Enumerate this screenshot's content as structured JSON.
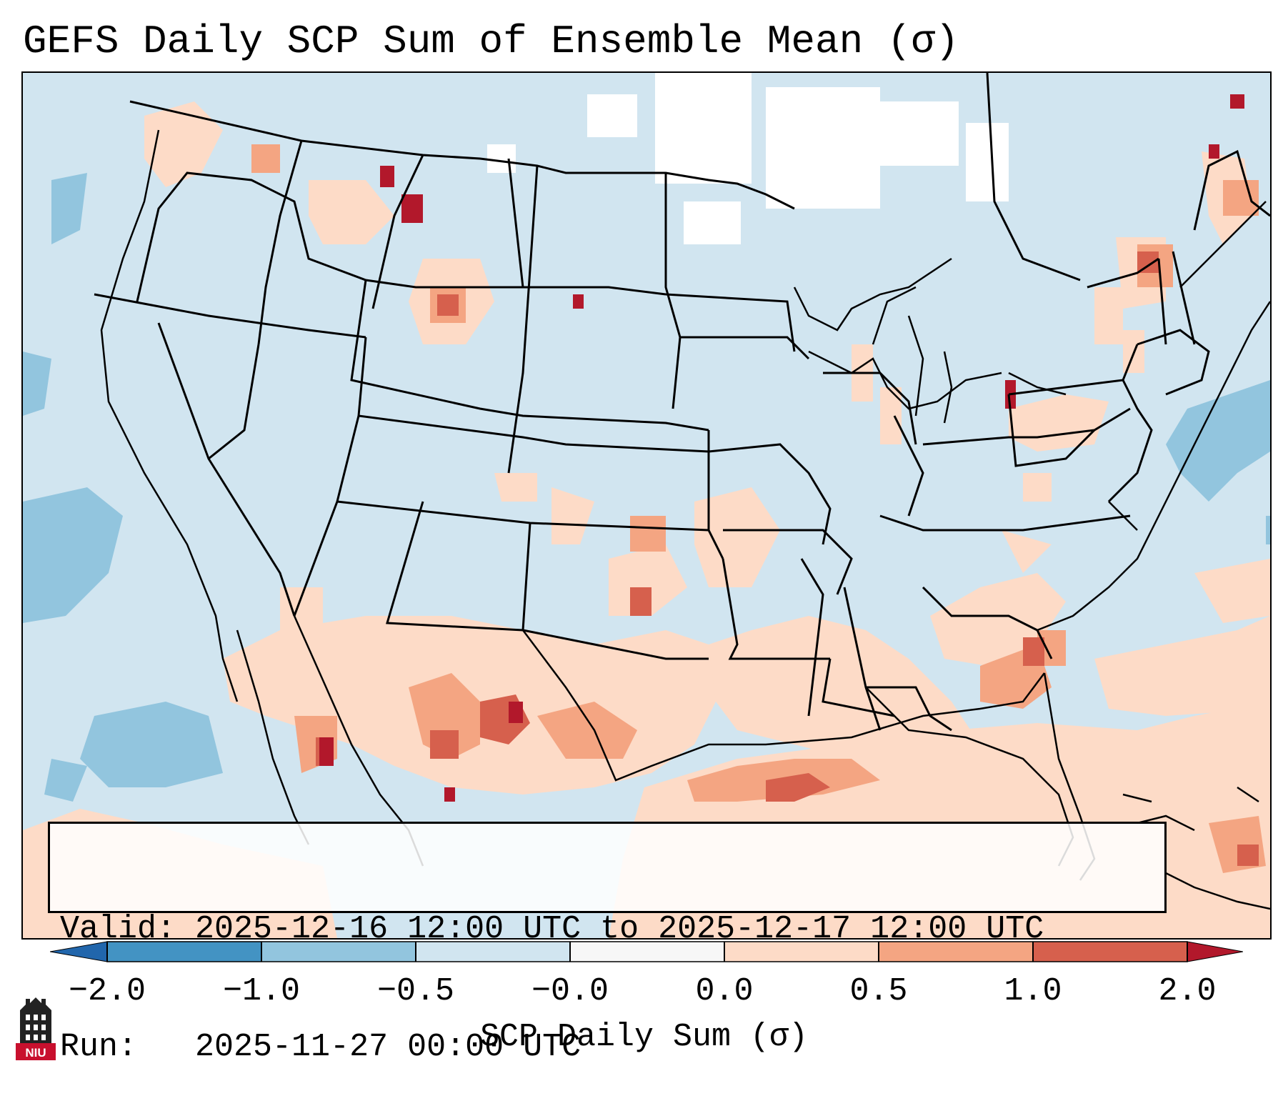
{
  "title": "GEFS Daily SCP Sum of Ensemble Mean (σ)",
  "info_box": {
    "valid_line": "Valid: 2025-12-16 12:00 UTC to 2025-12-17 12:00 UTC",
    "run_line": "Run:   2025-11-27 00:00 UTC"
  },
  "colorbar": {
    "label": "SCP Daily Sum (σ)",
    "ticks": [
      "−2.0",
      "−1.0",
      "−0.5",
      "−0.0",
      "0.0",
      "0.5",
      "1.0",
      "2.0"
    ],
    "bins": [
      {
        "from": "<-2.0",
        "color": "#2166ac"
      },
      {
        "from": -2.0,
        "to": -1.0,
        "color": "#4393c3"
      },
      {
        "from": -1.0,
        "to": -0.5,
        "color": "#92c5de"
      },
      {
        "from": -0.5,
        "to": 0.0,
        "color": "#d1e5f0"
      },
      {
        "from": 0.0,
        "to": 0.0,
        "color": "#f7f7f7"
      },
      {
        "from": 0.0,
        "to": 0.5,
        "color": "#fddbc7"
      },
      {
        "from": 0.5,
        "to": 1.0,
        "color": "#f4a582"
      },
      {
        "from": 1.0,
        "to": 2.0,
        "color": "#d6604d"
      },
      {
        "from": ">2.0",
        "color": "#b2182b"
      }
    ]
  },
  "map_colors": {
    "ocean_neg": "#d1e5f0",
    "pos_light": "#fddbc7",
    "pos_med": "#f4a582",
    "pos_high": "#d6604d",
    "pos_max": "#b2182b",
    "neg_med": "#92c5de",
    "zero": "#ffffff"
  },
  "logo": {
    "text": "NIU",
    "icon": "niu-tower-logo-icon"
  }
}
